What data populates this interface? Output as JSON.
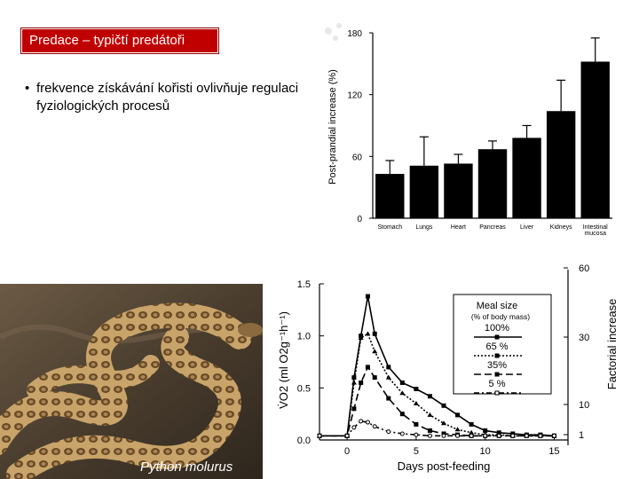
{
  "slide": {
    "title": "Predace – typičtí predátoři",
    "bullet_text": "frekvence získávání kořisti ovlivňuje regulaci fyziologických procesů",
    "photo_caption": "Python molurus",
    "colors": {
      "title_bg": "#c00000"
    }
  },
  "chart_data": [
    {
      "type": "bar",
      "ylabel": "Post-prandial increase (%)",
      "ylim": [
        0,
        180
      ],
      "yticks": [
        0,
        60,
        120,
        180
      ],
      "categories": [
        "Stomach",
        "Lungs",
        "Heart",
        "Pancreas",
        "Liver",
        "Kidneys",
        "Intestinal mucosa"
      ],
      "values": [
        43,
        51,
        53,
        67,
        78,
        104,
        152
      ],
      "errors": [
        13,
        28,
        9,
        8,
        12,
        30,
        23
      ]
    },
    {
      "type": "line",
      "xlabel": "Days post-feeding",
      "ylabel": "V̇O2 (ml O2g⁻¹h⁻¹)",
      "ylabel_right": "Factorial increase",
      "xlim": [
        -2,
        16
      ],
      "ylim": [
        0,
        1.5
      ],
      "xticks": [
        0,
        5,
        10,
        15
      ],
      "yticks": [
        "0.0",
        "0.5",
        "1.0",
        "1.5"
      ],
      "yticks_right": [
        "1",
        "10",
        "30",
        "60"
      ],
      "legend": {
        "title": "Meal size",
        "subtitle": "(% of body mass)",
        "placement": "top-right"
      },
      "series": [
        {
          "name": "100%",
          "x": [
            -2,
            0,
            0.5,
            1,
            1.5,
            2,
            3,
            4,
            5,
            6,
            7,
            8,
            9,
            10,
            11,
            12,
            13,
            14,
            15
          ],
          "y": [
            0.04,
            0.04,
            0.6,
            1.0,
            1.38,
            1.02,
            0.7,
            0.55,
            0.49,
            0.42,
            0.33,
            0.24,
            0.15,
            0.09,
            0.07,
            0.06,
            0.05,
            0.05,
            0.04
          ]
        },
        {
          "name": "65 %",
          "x": [
            -2,
            0,
            0.5,
            1,
            1.5,
            2,
            3,
            4,
            5,
            6,
            7,
            8,
            9,
            10,
            11,
            12,
            13,
            14,
            15
          ],
          "y": [
            0.04,
            0.04,
            0.55,
            0.98,
            1.02,
            0.85,
            0.6,
            0.45,
            0.35,
            0.24,
            0.16,
            0.1,
            0.07,
            0.05,
            0.05,
            0.04,
            0.04,
            0.04,
            0.04
          ]
        },
        {
          "name": "35%",
          "x": [
            -2,
            0,
            0.5,
            1,
            1.5,
            2,
            3,
            4,
            5,
            6,
            7,
            8,
            9,
            10,
            11,
            12,
            13,
            14,
            15
          ],
          "y": [
            0.04,
            0.04,
            0.3,
            0.55,
            0.7,
            0.6,
            0.4,
            0.25,
            0.15,
            0.09,
            0.06,
            0.05,
            0.04,
            0.04,
            0.04,
            0.04,
            0.04,
            0.04,
            0.04
          ]
        },
        {
          "name": "5 %",
          "x": [
            -2,
            0,
            0.5,
            1,
            1.5,
            2,
            3,
            4,
            5,
            6,
            7,
            8,
            9,
            10,
            11,
            12,
            13,
            14,
            15
          ],
          "y": [
            0.04,
            0.04,
            0.12,
            0.18,
            0.17,
            0.13,
            0.08,
            0.06,
            0.05,
            0.04,
            0.04,
            0.04,
            0.04,
            0.04,
            0.04,
            0.04,
            0.04,
            0.04,
            0.04
          ]
        }
      ]
    }
  ]
}
